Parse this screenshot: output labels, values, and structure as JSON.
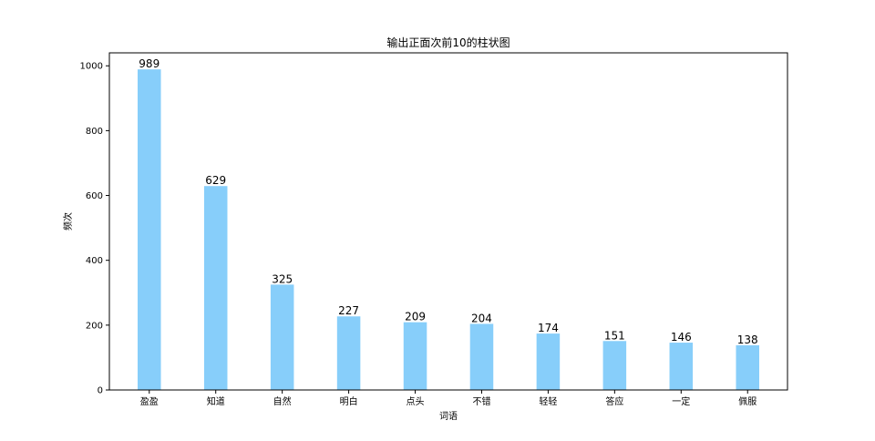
{
  "chart_data": {
    "type": "bar",
    "title": "输出正面次前10的柱状图",
    "xlabel": "词语",
    "ylabel": "频次",
    "categories": [
      "盈盈",
      "知道",
      "自然",
      "明白",
      "点头",
      "不错",
      "轻轻",
      "答应",
      "一定",
      "佩服"
    ],
    "values": [
      989,
      629,
      325,
      227,
      209,
      204,
      174,
      151,
      146,
      138
    ],
    "ylim": [
      0,
      1040
    ],
    "yticks": [
      0,
      200,
      400,
      600,
      800,
      1000
    ],
    "grid": false,
    "legend": "none",
    "bar_color": "#87cefa"
  }
}
